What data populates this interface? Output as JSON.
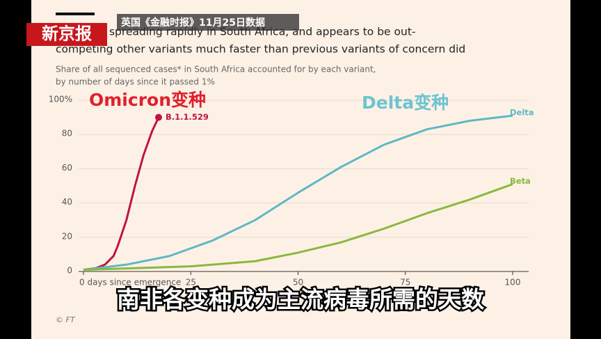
{
  "chart_data": {
    "type": "line",
    "title": [
      "variant is spreading rapidly in South Africa, and appears to be out-",
      "competing other variants much faster than previous variants of concern did"
    ],
    "subtitle": [
      "Share of all sequenced cases* in South Africa accounted for by each variant,",
      "by number of days since it passed 1%"
    ],
    "source_overlay": "英国《金融时报》11月25日数据",
    "logo": "新京报",
    "annotations": [
      "Omicron变种",
      "Delta变种"
    ],
    "caption": "南非各变种成为主流病毒所需的天数",
    "credit": "© FT",
    "xlim": [
      0,
      100
    ],
    "xticks": [
      {
        "value": 0,
        "label": "0 days since emergence"
      },
      25,
      50,
      75,
      100
    ],
    "ylim": [
      0,
      100
    ],
    "yticks": [
      0,
      20,
      40,
      60,
      80,
      {
        "value": 100,
        "label": "100%"
      }
    ],
    "grid": true,
    "series": [
      {
        "name": "B.1.1.529",
        "color": "#c0143c",
        "x": [
          0,
          3,
          5,
          7,
          8,
          10,
          12,
          14,
          16,
          17.5
        ],
        "values": [
          1,
          2,
          4,
          9,
          15,
          30,
          50,
          68,
          82,
          90
        ]
      },
      {
        "name": "Delta",
        "color": "#5fb8c4",
        "x": [
          0,
          10,
          20,
          30,
          40,
          50,
          60,
          70,
          80,
          90,
          100
        ],
        "values": [
          1,
          4,
          9,
          18,
          30,
          46,
          61,
          74,
          83,
          88,
          91
        ]
      },
      {
        "name": "Beta",
        "color": "#8ab83c",
        "x": [
          0,
          25,
          40,
          50,
          60,
          70,
          80,
          90,
          100
        ],
        "values": [
          1,
          3,
          6,
          11,
          17,
          25,
          34,
          42,
          51
        ]
      }
    ]
  }
}
